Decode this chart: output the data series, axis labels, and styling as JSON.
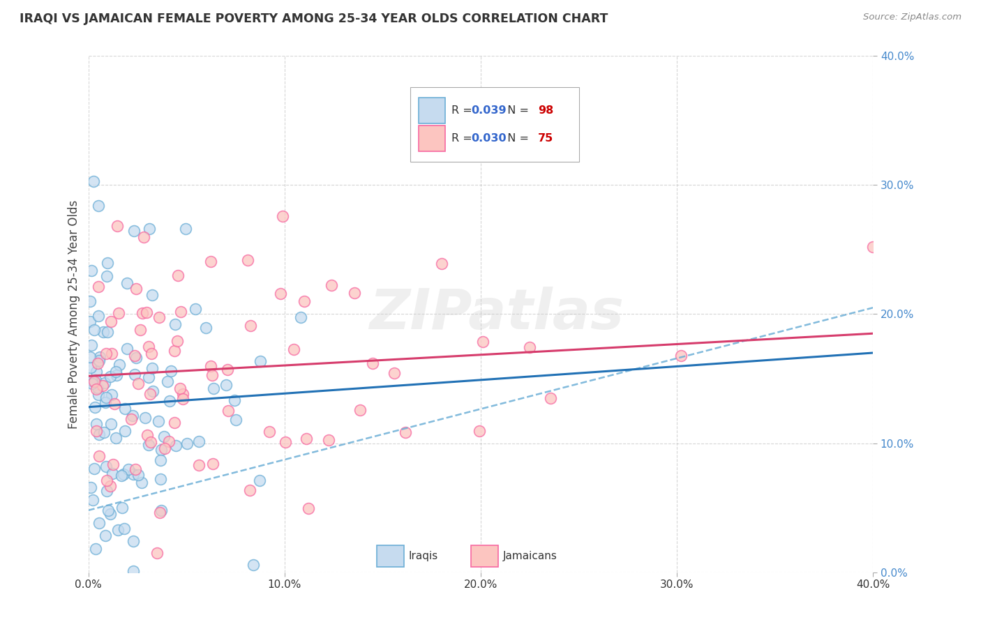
{
  "title": "IRAQI VS JAMAICAN FEMALE POVERTY AMONG 25-34 YEAR OLDS CORRELATION CHART",
  "source": "Source: ZipAtlas.com",
  "ylabel": "Female Poverty Among 25-34 Year Olds",
  "xlim": [
    0.0,
    0.4
  ],
  "ylim": [
    0.0,
    0.4
  ],
  "xticks": [
    0.0,
    0.1,
    0.2,
    0.3,
    0.4
  ],
  "yticks": [
    0.0,
    0.1,
    0.2,
    0.3,
    0.4
  ],
  "xticklabels": [
    "0.0%",
    "10.0%",
    "20.0%",
    "30.0%",
    "40.0%"
  ],
  "yticklabels": [
    "0.0%",
    "10.0%",
    "20.0%",
    "30.0%",
    "40.0%"
  ],
  "iraqi_R": 0.039,
  "iraqi_N": 98,
  "jamaican_R": 0.03,
  "jamaican_N": 75,
  "iraqi_fill_color": "#c6dbef",
  "iraqi_edge_color": "#6baed6",
  "jamaican_fill_color": "#fcc5c0",
  "jamaican_edge_color": "#f768a1",
  "trend_iraqi_color": "#2171b5",
  "trend_jamaican_color": "#d63c6c",
  "dash_line_color": "#6baed6",
  "watermark_color": "#cccccc",
  "watermark": "ZIPatlas",
  "legend_R_color": "#3366cc",
  "legend_N_color": "#cc0000",
  "background_color": "#ffffff",
  "grid_color": "#bbbbbb",
  "yaxis_label_color": "#4488cc",
  "xaxis_label_color": "#333333"
}
